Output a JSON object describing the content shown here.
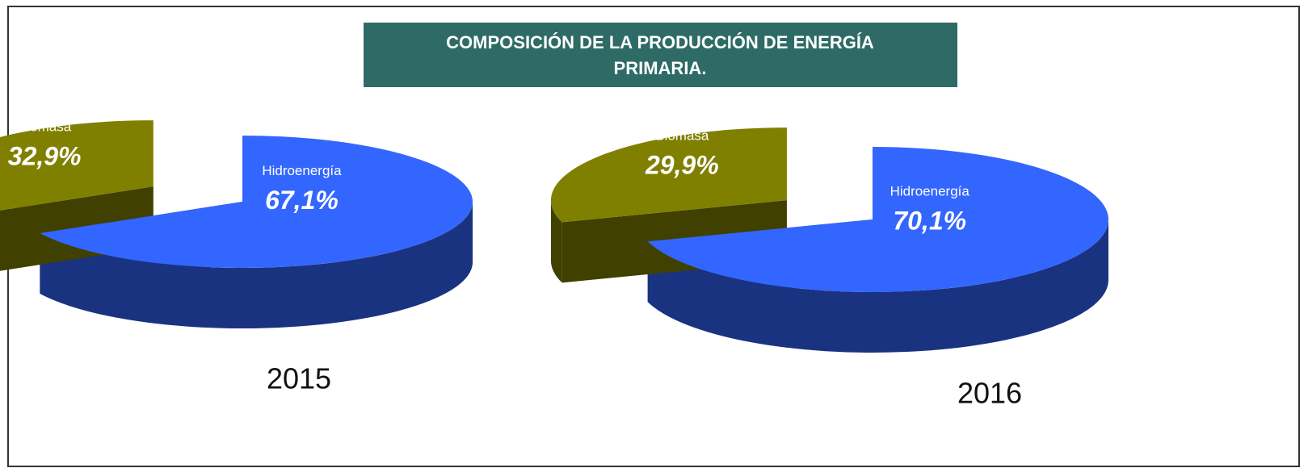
{
  "title": "COMPOSICIÓN DE LA PRODUCCIÓN DE ENERGÍA PRIMARIA.",
  "chart_data": [
    {
      "type": "pie",
      "title": "2015",
      "categories": [
        "Hidroenergía",
        "Biomasa"
      ],
      "values": [
        67.1,
        32.9
      ],
      "value_labels": [
        "67,1%",
        "32,9%"
      ],
      "colors": [
        "#3366ff",
        "#808000"
      ]
    },
    {
      "type": "pie",
      "title": "2016",
      "categories": [
        "Hidroenergía",
        "Biomasa"
      ],
      "values": [
        70.1,
        29.9
      ],
      "value_labels": [
        "70,1%",
        "29,9%"
      ],
      "colors": [
        "#3366ff",
        "#808000"
      ]
    }
  ]
}
